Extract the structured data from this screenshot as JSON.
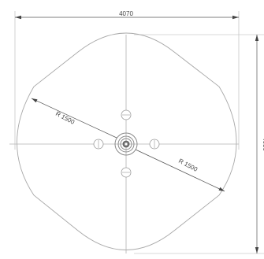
{
  "dimensions": {
    "overall_width": "4070",
    "overall_height": "4630"
  },
  "radii": {
    "upper_left": "R 1500",
    "lower_right": "R 1500"
  },
  "colors": {
    "outline": "#a8a8a8",
    "dimension": "#444444",
    "centerline": "#b0b0b0"
  }
}
